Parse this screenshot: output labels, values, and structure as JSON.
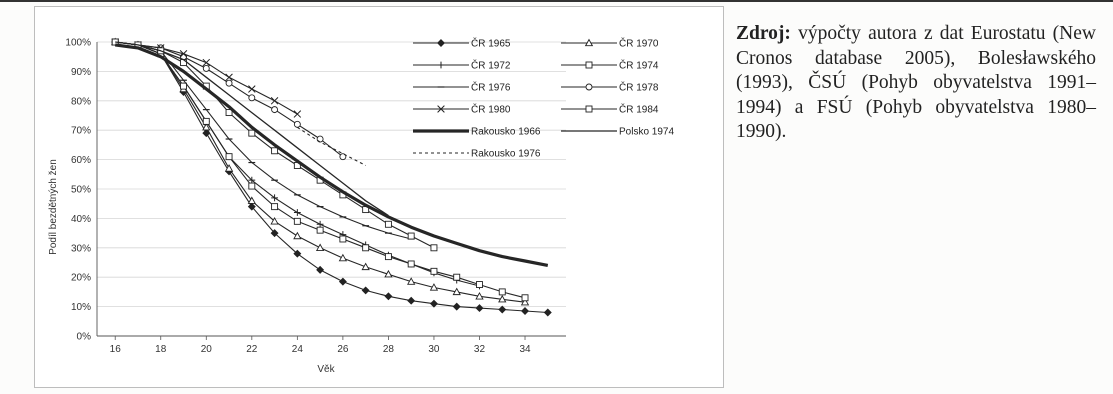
{
  "source": {
    "label": "Zdroj:",
    "text": "výpočty autora z dat Eurostatu (New Cronos database 2005), Bolesławského (1993), ČSÚ (Pohyb obyvatelstva 1991–1994) a FSÚ (Pohyb obyvatelstva 1980–1990)."
  },
  "chart_data": {
    "type": "line",
    "xlabel": "Věk",
    "ylabel": "Podíl bezdětných žen",
    "xlim": [
      15.2,
      35.8
    ],
    "ylim": [
      0,
      100
    ],
    "x_ticks": [
      16,
      18,
      20,
      22,
      24,
      26,
      28,
      30,
      32,
      34
    ],
    "y_ticks": [
      "0%",
      "10%",
      "20%",
      "30%",
      "40%",
      "50%",
      "60%",
      "70%",
      "80%",
      "90%",
      "100%"
    ],
    "grid": true,
    "legend_position": "right",
    "series": [
      {
        "name": "ČR 1965",
        "marker": "diamond",
        "style": "solid",
        "width": 1.1,
        "x": [
          16,
          17,
          18,
          19,
          20,
          21,
          22,
          23,
          24,
          25,
          26,
          27,
          28,
          29,
          30,
          31,
          32,
          33,
          34,
          35
        ],
        "y": [
          100,
          99,
          96,
          83,
          69,
          56,
          44,
          35,
          28,
          22.5,
          18.5,
          15.5,
          13.5,
          12,
          11,
          10,
          9.5,
          9,
          8.5,
          8
        ]
      },
      {
        "name": "ČR 1970",
        "marker": "triangle",
        "style": "solid",
        "width": 1.1,
        "x": [
          16,
          17,
          18,
          19,
          20,
          21,
          22,
          23,
          24,
          25,
          26,
          27,
          28,
          29,
          30,
          31,
          32,
          33,
          34
        ],
        "y": [
          100,
          99,
          96,
          84,
          71,
          57,
          46,
          39,
          34,
          30,
          26.5,
          23.5,
          21,
          18.5,
          16.5,
          15,
          13.5,
          12.5,
          11.5
        ]
      },
      {
        "name": "ČR 1972",
        "marker": "plus",
        "style": "solid",
        "width": 1.1,
        "x": [
          16,
          17,
          18,
          19,
          20,
          21,
          22,
          23,
          24,
          25,
          26,
          27,
          28,
          29,
          30,
          31,
          32
        ],
        "y": [
          100,
          99,
          96,
          85,
          73,
          61,
          53,
          47,
          42,
          38,
          34.5,
          31,
          27.5,
          24.5,
          21.5,
          19,
          17
        ]
      },
      {
        "name": "ČR 1974",
        "marker": "square",
        "style": "solid",
        "width": 1.1,
        "x": [
          16,
          17,
          18,
          19,
          20,
          21,
          22,
          23,
          24,
          25,
          26,
          27,
          28,
          29,
          30,
          31,
          32,
          33,
          34
        ],
        "y": [
          100,
          99,
          96,
          85,
          73,
          61,
          51,
          44,
          39,
          36,
          33,
          30,
          27,
          24.5,
          22,
          20,
          17.5,
          15,
          13
        ]
      },
      {
        "name": "ČR 1976",
        "marker": "dash",
        "style": "solid",
        "width": 1.1,
        "x": [
          16,
          17,
          18,
          19,
          20,
          21,
          22,
          23,
          24,
          25,
          26,
          27,
          28,
          29
        ],
        "y": [
          100,
          99,
          97,
          87,
          77,
          67,
          59,
          53,
          48,
          44,
          40.5,
          37.5,
          35,
          33
        ]
      },
      {
        "name": "ČR 1978",
        "marker": "circle",
        "style": "solid",
        "width": 1.1,
        "x": [
          16,
          17,
          18,
          19,
          20,
          21,
          22,
          23,
          24,
          25,
          26
        ],
        "y": [
          100,
          99,
          98,
          95,
          91,
          86,
          81,
          77,
          72,
          67,
          61
        ]
      },
      {
        "name": "ČR 1980",
        "marker": "x",
        "style": "solid",
        "width": 1.1,
        "x": [
          16,
          17,
          18,
          19,
          20,
          21,
          22,
          23,
          24
        ],
        "y": [
          100,
          99,
          98,
          96,
          93,
          88,
          84,
          80,
          75.5
        ]
      },
      {
        "name": "ČR 1984",
        "marker": "square",
        "style": "solid",
        "width": 1.1,
        "x": [
          16,
          17,
          18,
          19,
          20,
          21,
          22,
          23,
          24,
          25,
          26,
          27,
          28,
          29,
          30
        ],
        "y": [
          100,
          99,
          97,
          93,
          85,
          76,
          69,
          63,
          58,
          53,
          48,
          43,
          38,
          34,
          30
        ]
      },
      {
        "name": "Rakousko 1966",
        "marker": "none",
        "style": "solid",
        "width": 3.2,
        "x": [
          16,
          17,
          18,
          19,
          20,
          21,
          22,
          23,
          24,
          25,
          26,
          27,
          28,
          29,
          30,
          31,
          32,
          33,
          34,
          35
        ],
        "y": [
          99,
          98,
          95,
          90,
          84,
          78,
          71,
          65,
          59.5,
          54,
          49,
          44.5,
          40.5,
          37,
          34,
          31.5,
          29,
          27,
          25.5,
          24
        ]
      },
      {
        "name": "Polsko 1974",
        "marker": "none",
        "style": "solid",
        "width": 1.3,
        "x": [
          16,
          17,
          18,
          19,
          20,
          21,
          22,
          23,
          24,
          25,
          26,
          27,
          28
        ],
        "y": [
          100,
          99,
          97,
          94,
          88,
          82,
          76,
          70,
          64,
          58,
          52,
          46,
          41
        ]
      },
      {
        "name": "Rakousko 1976",
        "marker": "none",
        "style": "dashed",
        "width": 1.1,
        "x": [
          24,
          25,
          26,
          27
        ],
        "y": [
          71,
          66,
          62,
          58
        ]
      }
    ]
  }
}
